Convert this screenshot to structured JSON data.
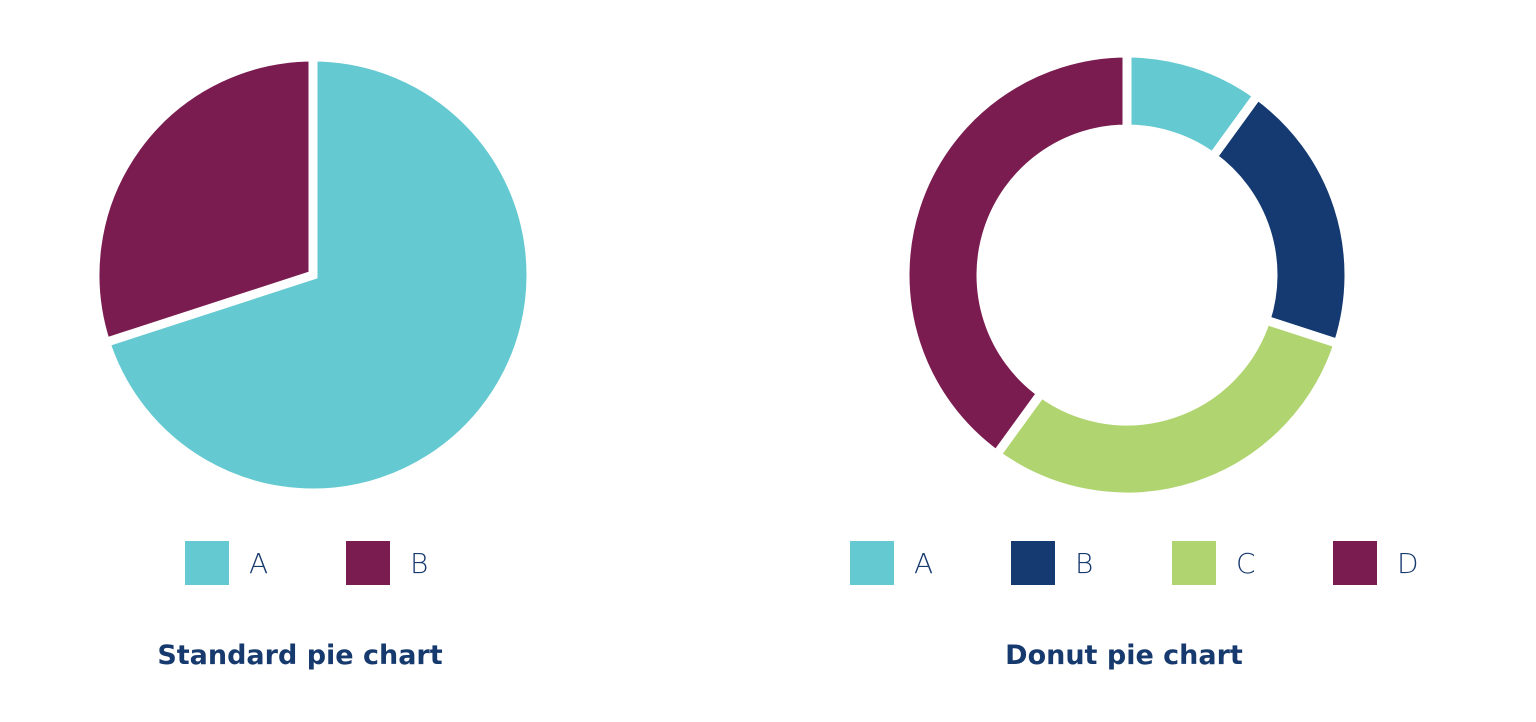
{
  "chart_data": [
    {
      "type": "pie",
      "title": "Standard pie chart",
      "categories": [
        "A",
        "B"
      ],
      "values": [
        70,
        30
      ],
      "colors": [
        "#64c9d0",
        "#7a1c50"
      ],
      "legend": "bottom"
    },
    {
      "type": "pie",
      "variant": "donut",
      "title": "Donut pie chart",
      "categories": [
        "A",
        "B",
        "C",
        "D"
      ],
      "values": [
        10,
        20,
        30,
        40
      ],
      "colors": [
        "#64c9d0",
        "#143a71",
        "#b0d46f",
        "#7a1c50"
      ],
      "legend": "bottom"
    }
  ],
  "style": {
    "text_color": "#173a6e",
    "background": "#ffffff"
  }
}
